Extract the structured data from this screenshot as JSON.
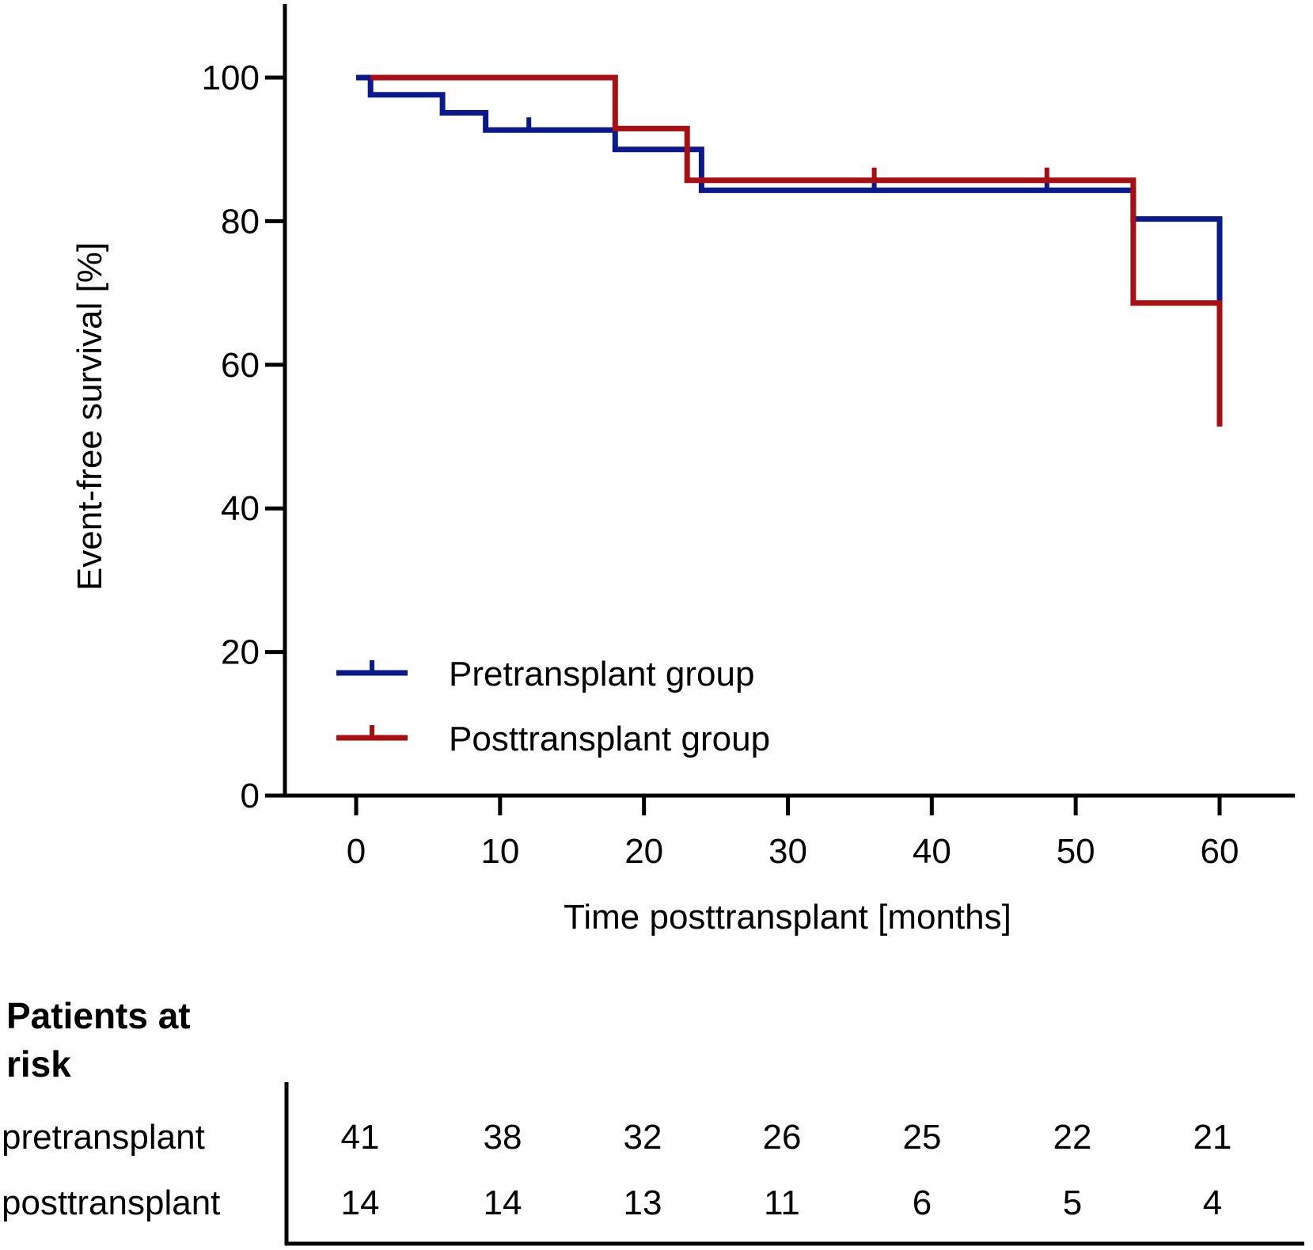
{
  "chart_data": {
    "type": "line",
    "subtype": "kaplan-meier step",
    "xlabel": "Time posttransplant [months]",
    "ylabel": "Event-free survival [%]",
    "xlim": [
      -6,
      66
    ],
    "ylim": [
      0,
      110
    ],
    "x_ticks": [
      0,
      10,
      20,
      30,
      40,
      50,
      60
    ],
    "y_ticks": [
      0,
      20,
      40,
      60,
      80,
      100
    ],
    "legend_position": "bottom-left",
    "series": [
      {
        "name": "Pretransplant group",
        "color": "#0a1a8c",
        "steps": [
          [
            0,
            100
          ],
          [
            1,
            97.6
          ],
          [
            6,
            95.1
          ],
          [
            9,
            92.7
          ],
          [
            18,
            90.0
          ],
          [
            24,
            84.3
          ],
          [
            54,
            80.3
          ],
          [
            60,
            61.5
          ]
        ],
        "end_x": 60,
        "censored_x": [
          12,
          36,
          48
        ]
      },
      {
        "name": "Posttransplant group",
        "color": "#a80e12",
        "steps": [
          [
            1,
            100
          ],
          [
            18,
            92.9
          ],
          [
            23,
            85.7
          ],
          [
            54,
            68.6
          ],
          [
            60,
            51.4
          ]
        ],
        "end_x": 60,
        "censored_x": [
          36,
          48
        ]
      }
    ],
    "risk_table": {
      "title": "Patients at risk",
      "times": [
        0,
        10,
        20,
        30,
        40,
        50,
        60
      ],
      "rows": [
        {
          "label": "pretransplant",
          "values": [
            "41",
            "38",
            "32",
            "26",
            "25",
            "22",
            "21"
          ]
        },
        {
          "label": "posttransplant",
          "values": [
            "14",
            "14",
            "13",
            "11",
            "6",
            "5",
            "4"
          ]
        }
      ]
    }
  }
}
